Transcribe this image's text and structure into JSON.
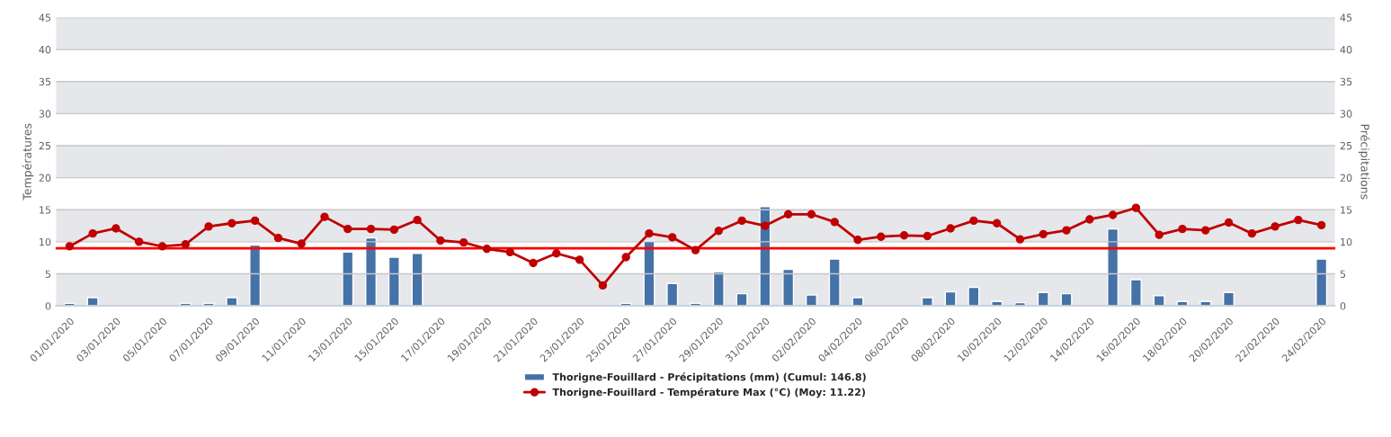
{
  "chart_data": {
    "type": "line",
    "categories": [
      "01/01/2020",
      null,
      "03/01/2020",
      null,
      "05/01/2020",
      null,
      "07/01/2020",
      null,
      "09/01/2020",
      null,
      "11/01/2020",
      null,
      "13/01/2020",
      null,
      "15/01/2020",
      null,
      "17/01/2020",
      null,
      "19/01/2020",
      null,
      "21/01/2020",
      null,
      "23/01/2020",
      null,
      "25/01/2020",
      null,
      "27/01/2020",
      null,
      "29/01/2020",
      null,
      "31/01/2020",
      null,
      "02/02/2020",
      null,
      "04/02/2020",
      null,
      "06/02/2020",
      null,
      "08/02/2020",
      null,
      "10/02/2020",
      null,
      "12/02/2020",
      null,
      "14/02/2020",
      null,
      "16/02/2020",
      null,
      "18/02/2020",
      null,
      "20/02/2020",
      null,
      "22/02/2020",
      null,
      "24/02/2020"
    ],
    "series": [
      {
        "name": "Thorigne-Fouillard - Précipitations (mm) (Cumul: 146.8)",
        "type": "bar",
        "axis": "y2",
        "color": "#4572a7",
        "values": [
          0.4,
          1.3,
          null,
          null,
          null,
          0.4,
          0.4,
          1.3,
          9.5,
          null,
          null,
          null,
          8.4,
          10.6,
          7.6,
          8.2,
          null,
          null,
          null,
          null,
          null,
          null,
          null,
          null,
          0.4,
          10.1,
          3.5,
          0.4,
          5.3,
          1.9,
          15.5,
          5.7,
          1.7,
          7.3,
          1.3,
          null,
          null,
          1.3,
          2.2,
          2.9,
          0.7,
          0.5,
          2.1,
          1.9,
          null,
          12.0,
          4.1,
          1.6,
          0.7,
          0.7,
          2.1,
          null,
          null,
          null,
          7.3
        ]
      },
      {
        "name": "Thorigne-Fouillard - Température Max (°C) (Moy: 11.22)",
        "axis": "y",
        "color": "#c00000",
        "marker": "circle",
        "values": [
          9.3,
          11.3,
          12.1,
          10.0,
          9.3,
          9.6,
          12.4,
          12.9,
          13.3,
          10.6,
          9.7,
          13.9,
          12.0,
          12.0,
          11.9,
          13.4,
          10.2,
          9.9,
          8.9,
          8.4,
          6.7,
          8.2,
          7.2,
          3.2,
          7.6,
          11.3,
          10.7,
          8.7,
          11.7,
          13.3,
          12.5,
          14.3,
          14.3,
          13.1,
          10.3,
          10.8,
          11.0,
          10.9,
          12.1,
          13.3,
          12.9,
          10.4,
          11.2,
          11.8,
          13.5,
          14.2,
          15.3,
          11.1,
          12.0,
          11.8,
          13.0,
          11.3,
          12.4,
          13.4,
          12.6
        ]
      }
    ],
    "ylabel": "Températures",
    "y2label": "Précipitations",
    "ylim": [
      0,
      45
    ],
    "yticks": [
      0,
      5,
      10,
      15,
      20,
      25,
      30,
      35,
      40,
      45
    ],
    "y2lim": [
      0,
      45
    ],
    "y2ticks": [
      0,
      5,
      10,
      15,
      20,
      25,
      30,
      35,
      40,
      45
    ],
    "ref_lines": [
      {
        "axis": "y",
        "value": 9.0,
        "color": "#ff0000"
      }
    ],
    "bands": [
      {
        "axis": "y",
        "from": 0,
        "to": 5,
        "color": "#e6e7eb"
      },
      {
        "axis": "y",
        "from": 10,
        "to": 15,
        "color": "#e6e7eb"
      },
      {
        "axis": "y",
        "from": 20,
        "to": 25,
        "color": "#e6e7eb"
      },
      {
        "axis": "y",
        "from": 30,
        "to": 35,
        "color": "#e6e7eb"
      },
      {
        "axis": "y",
        "from": 40,
        "to": 45,
        "color": "#e6e7eb"
      }
    ],
    "grid": "y",
    "legend": "bottom"
  }
}
